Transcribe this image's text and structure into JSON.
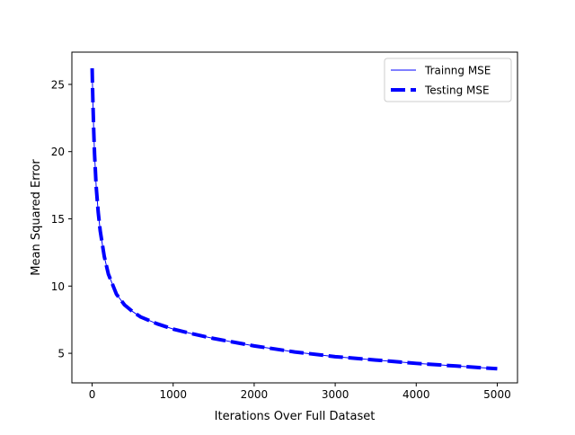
{
  "chart_data": {
    "type": "line",
    "title": "",
    "xlabel": "Iterations Over Full Dataset",
    "ylabel": "Mean Squared Error",
    "xlim": [
      -250,
      5250
    ],
    "ylim": [
      2.8,
      27.4
    ],
    "xticks": [
      0,
      1000,
      2000,
      3000,
      4000,
      5000
    ],
    "yticks": [
      5,
      10,
      15,
      20,
      25
    ],
    "grid": false,
    "legend_position": "top-right",
    "series": [
      {
        "name": "Trainng MSE",
        "color": "#0000ff",
        "style": "solid",
        "x": [
          0,
          5,
          10,
          20,
          30,
          50,
          75,
          100,
          150,
          200,
          300,
          400,
          500,
          600,
          800,
          1000,
          1200,
          1500,
          2000,
          2500,
          3000,
          3500,
          4000,
          4500,
          5000
        ],
        "y": [
          26.2,
          24.8,
          23.6,
          21.5,
          19.8,
          17.4,
          15.5,
          14.1,
          12.2,
          10.9,
          9.4,
          8.6,
          8.1,
          7.7,
          7.2,
          6.8,
          6.5,
          6.1,
          5.55,
          5.1,
          4.75,
          4.5,
          4.25,
          4.05,
          3.85
        ]
      },
      {
        "name": "Testing MSE",
        "color": "#0000ff",
        "style": "dashed",
        "x": [
          0,
          5,
          10,
          20,
          30,
          50,
          75,
          100,
          150,
          200,
          300,
          400,
          500,
          600,
          800,
          1000,
          1200,
          1500,
          2000,
          2500,
          3000,
          3500,
          4000,
          4500,
          5000
        ],
        "y": [
          26.2,
          24.8,
          23.6,
          21.5,
          19.8,
          17.4,
          15.5,
          14.1,
          12.2,
          10.9,
          9.4,
          8.6,
          8.1,
          7.7,
          7.2,
          6.8,
          6.5,
          6.1,
          5.55,
          5.1,
          4.75,
          4.5,
          4.25,
          4.05,
          3.85
        ]
      }
    ]
  }
}
